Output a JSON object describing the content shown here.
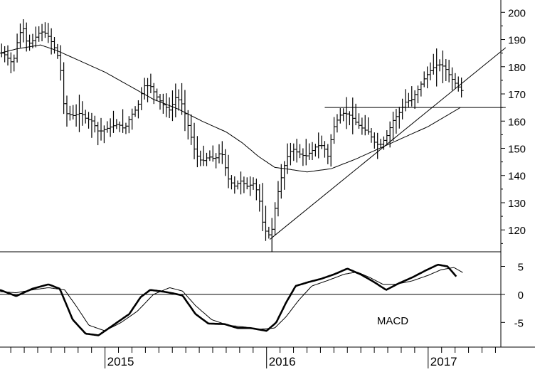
{
  "chart_data": [
    {
      "type": "ohlc",
      "panel": "price",
      "y_axis": {
        "ticks": [
          120,
          130,
          140,
          150,
          160,
          170,
          180,
          190,
          200
        ],
        "range": [
          113,
          204
        ],
        "position": "right"
      },
      "x_axis": {
        "range": [
          2014.35,
          2017.45
        ],
        "labels": [
          {
            "value": 2015,
            "label": "2015"
          },
          {
            "value": 2016,
            "label": "2016"
          },
          {
            "value": 2017,
            "label": "2017"
          }
        ]
      },
      "price_anchors": [
        [
          2014.37,
          185
        ],
        [
          2014.4,
          183
        ],
        [
          2014.43,
          181
        ],
        [
          2014.46,
          190
        ],
        [
          2014.49,
          195
        ],
        [
          2014.52,
          188
        ],
        [
          2014.56,
          190
        ],
        [
          2014.6,
          193
        ],
        [
          2014.64,
          192
        ],
        [
          2014.68,
          188
        ],
        [
          2014.72,
          182
        ],
        [
          2014.75,
          163
        ],
        [
          2014.8,
          162
        ],
        [
          2014.85,
          163
        ],
        [
          2014.88,
          161
        ],
        [
          2014.92,
          160
        ],
        [
          2014.96,
          156
        ],
        [
          2015.0,
          157
        ],
        [
          2015.04,
          158
        ],
        [
          2015.08,
          159
        ],
        [
          2015.12,
          157
        ],
        [
          2015.16,
          162
        ],
        [
          2015.2,
          165
        ],
        [
          2015.24,
          173
        ],
        [
          2015.28,
          173
        ],
        [
          2015.32,
          169
        ],
        [
          2015.36,
          166
        ],
        [
          2015.4,
          164
        ],
        [
          2015.44,
          169
        ],
        [
          2015.48,
          166
        ],
        [
          2015.52,
          157
        ],
        [
          2015.56,
          148
        ],
        [
          2015.6,
          145
        ],
        [
          2015.64,
          147
        ],
        [
          2015.68,
          146
        ],
        [
          2015.72,
          149
        ],
        [
          2015.76,
          139
        ],
        [
          2015.8,
          136
        ],
        [
          2015.84,
          138
        ],
        [
          2015.88,
          136
        ],
        [
          2015.92,
          137
        ],
        [
          2015.95,
          133
        ],
        [
          2015.98,
          121
        ],
        [
          2016.01,
          118
        ],
        [
          2016.03,
          119
        ],
        [
          2016.06,
          131
        ],
        [
          2016.09,
          139
        ],
        [
          2016.12,
          146
        ],
        [
          2016.16,
          150
        ],
        [
          2016.2,
          148
        ],
        [
          2016.24,
          147
        ],
        [
          2016.28,
          149
        ],
        [
          2016.31,
          151
        ],
        [
          2016.35,
          151
        ],
        [
          2016.38,
          147
        ],
        [
          2016.41,
          157
        ],
        [
          2016.45,
          162
        ],
        [
          2016.48,
          163
        ],
        [
          2016.52,
          162
        ],
        [
          2016.56,
          159
        ],
        [
          2016.6,
          157
        ],
        [
          2016.63,
          156
        ],
        [
          2016.67,
          152
        ],
        [
          2016.7,
          151
        ],
        [
          2016.74,
          154
        ],
        [
          2016.78,
          160
        ],
        [
          2016.82,
          163
        ],
        [
          2016.86,
          167
        ],
        [
          2016.9,
          168
        ],
        [
          2016.94,
          172
        ],
        [
          2016.98,
          176
        ],
        [
          2017.02,
          179
        ],
        [
          2017.06,
          181
        ],
        [
          2017.1,
          180
        ],
        [
          2017.14,
          176
        ],
        [
          2017.18,
          173
        ],
        [
          2017.21,
          171
        ]
      ],
      "ma_anchors": [
        [
          2014.35,
          185
        ],
        [
          2014.45,
          186.5
        ],
        [
          2014.6,
          188
        ],
        [
          2014.7,
          186
        ],
        [
          2014.85,
          182
        ],
        [
          2015.0,
          178
        ],
        [
          2015.15,
          173
        ],
        [
          2015.3,
          168
        ],
        [
          2015.45,
          164.5
        ],
        [
          2015.6,
          160
        ],
        [
          2015.75,
          156
        ],
        [
          2015.85,
          152
        ],
        [
          2015.95,
          147
        ],
        [
          2016.05,
          143
        ],
        [
          2016.15,
          142.2
        ],
        [
          2016.25,
          141.3
        ],
        [
          2016.4,
          142.5
        ],
        [
          2016.55,
          146
        ],
        [
          2016.7,
          150
        ],
        [
          2016.85,
          154
        ],
        [
          2017.0,
          158
        ],
        [
          2017.1,
          161.5
        ],
        [
          2017.2,
          165
        ]
      ],
      "trendline": [
        [
          2016.02,
          116.5
        ],
        [
          2017.48,
          187
        ]
      ],
      "resistance": {
        "y": 165,
        "x_start": 2016.36,
        "x_end": 2017.48
      }
    },
    {
      "type": "line",
      "panel": "indicator",
      "label": "MACD",
      "y_axis": {
        "ticks": [
          -5,
          0,
          5
        ],
        "range": [
          -9.4,
          7.6
        ],
        "position": "right"
      },
      "macd_anchors": [
        [
          2014.35,
          0.8
        ],
        [
          2014.45,
          -0.3
        ],
        [
          2014.55,
          1.0
        ],
        [
          2014.65,
          1.8
        ],
        [
          2014.72,
          1.0
        ],
        [
          2014.8,
          -4.5
        ],
        [
          2014.88,
          -7.0
        ],
        [
          2014.96,
          -7.3
        ],
        [
          2015.05,
          -5.5
        ],
        [
          2015.15,
          -3.5
        ],
        [
          2015.22,
          -0.5
        ],
        [
          2015.28,
          0.8
        ],
        [
          2015.36,
          0.5
        ],
        [
          2015.42,
          0.2
        ],
        [
          2015.48,
          -0.2
        ],
        [
          2015.56,
          -3.5
        ],
        [
          2015.64,
          -5.2
        ],
        [
          2015.74,
          -5.3
        ],
        [
          2015.82,
          -6.0
        ],
        [
          2015.9,
          -6.0
        ],
        [
          2016.0,
          -6.5
        ],
        [
          2016.06,
          -5.0
        ],
        [
          2016.12,
          -1.5
        ],
        [
          2016.18,
          1.5
        ],
        [
          2016.26,
          2.2
        ],
        [
          2016.34,
          2.8
        ],
        [
          2016.42,
          3.6
        ],
        [
          2016.5,
          4.6
        ],
        [
          2016.58,
          3.6
        ],
        [
          2016.66,
          2.3
        ],
        [
          2016.74,
          0.8
        ],
        [
          2016.82,
          2.0
        ],
        [
          2016.9,
          3.0
        ],
        [
          2016.98,
          4.2
        ],
        [
          2017.06,
          5.3
        ],
        [
          2017.12,
          5.0
        ],
        [
          2017.18,
          3.0
        ]
      ],
      "signal_anchors": [
        [
          2014.35,
          0.5
        ],
        [
          2014.45,
          0.3
        ],
        [
          2014.55,
          0.8
        ],
        [
          2014.65,
          1.2
        ],
        [
          2014.75,
          0.8
        ],
        [
          2014.82,
          -2.0
        ],
        [
          2014.9,
          -5.5
        ],
        [
          2015.0,
          -6.5
        ],
        [
          2015.1,
          -5.0
        ],
        [
          2015.2,
          -3.0
        ],
        [
          2015.3,
          0.0
        ],
        [
          2015.4,
          1.2
        ],
        [
          2015.48,
          0.6
        ],
        [
          2015.56,
          -2.0
        ],
        [
          2015.66,
          -4.5
        ],
        [
          2015.76,
          -5.5
        ],
        [
          2015.86,
          -5.8
        ],
        [
          2015.96,
          -6.2
        ],
        [
          2016.05,
          -6.0
        ],
        [
          2016.12,
          -4.0
        ],
        [
          2016.2,
          -1.0
        ],
        [
          2016.28,
          1.5
        ],
        [
          2016.38,
          2.5
        ],
        [
          2016.48,
          3.6
        ],
        [
          2016.56,
          4.0
        ],
        [
          2016.64,
          3.0
        ],
        [
          2016.72,
          1.8
        ],
        [
          2016.8,
          1.8
        ],
        [
          2016.9,
          2.4
        ],
        [
          2017.0,
          3.4
        ],
        [
          2017.08,
          4.4
        ],
        [
          2017.16,
          4.8
        ],
        [
          2017.22,
          3.8
        ]
      ]
    }
  ]
}
